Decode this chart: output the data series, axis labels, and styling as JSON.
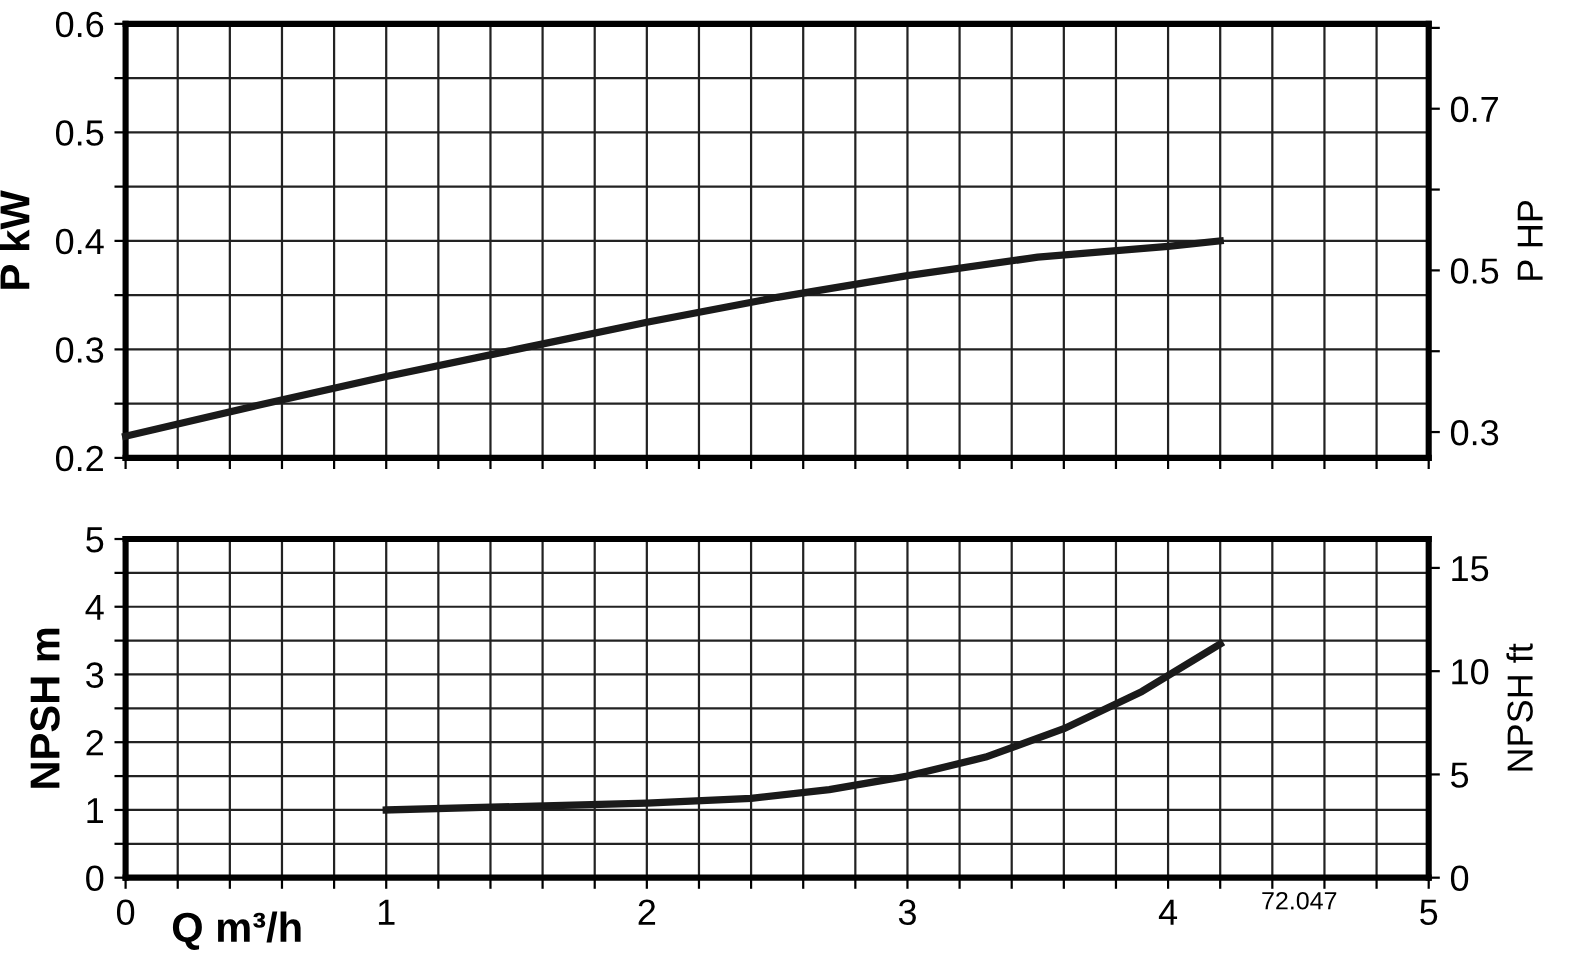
{
  "chart_data": [
    {
      "type": "line",
      "ylabel": "P kW",
      "y2label": "P HP",
      "grid": true,
      "tick_labels": "y",
      "marker": "none",
      "line_style": "solid",
      "xlim": [
        0,
        5
      ],
      "xticks": [
        0,
        {
          "value": 0.2,
          "label": null
        },
        {
          "value": 0.4,
          "label": null
        },
        {
          "value": 0.6,
          "label": null
        },
        {
          "value": 0.8,
          "label": null
        },
        1,
        {
          "value": 1.2,
          "label": null
        },
        {
          "value": 1.4,
          "label": null
        },
        {
          "value": 1.6,
          "label": null
        },
        {
          "value": 1.8,
          "label": null
        },
        2,
        {
          "value": 2.2,
          "label": null
        },
        {
          "value": 2.4,
          "label": null
        },
        {
          "value": 2.6,
          "label": null
        },
        {
          "value": 2.8,
          "label": null
        },
        3,
        {
          "value": 3.2,
          "label": null
        },
        {
          "value": 3.4,
          "label": null
        },
        {
          "value": 3.6,
          "label": null
        },
        {
          "value": 3.8,
          "label": null
        },
        4,
        {
          "value": 4.2,
          "label": null
        },
        {
          "value": 4.4,
          "label": null
        },
        {
          "value": 4.6,
          "label": null
        },
        {
          "value": 4.8,
          "label": null
        },
        5
      ],
      "ylim": [
        0.2,
        0.6
      ],
      "yticks": [
        0.2,
        {
          "value": 0.25,
          "label": null
        },
        0.3,
        {
          "value": 0.35,
          "label": null
        },
        0.4,
        {
          "value": 0.45,
          "label": null
        },
        0.5,
        {
          "value": 0.55,
          "label": null
        },
        0.6
      ],
      "y2lim": [
        0.268,
        0.805
      ],
      "y2ticks": [
        0.3,
        {
          "value": 0.4,
          "label": null
        },
        0.5,
        {
          "value": 0.6,
          "label": null
        },
        0.7,
        {
          "value": 0.8,
          "label": null
        }
      ],
      "series": [
        {
          "color": "#1a1a1a",
          "x": [
            0,
            0.5,
            1,
            1.5,
            2,
            2.5,
            3,
            3.5,
            4,
            4.2
          ],
          "values": [
            0.22,
            0.248,
            0.275,
            0.3,
            0.325,
            0.348,
            0.368,
            0.385,
            0.395,
            0.4
          ]
        }
      ]
    },
    {
      "type": "line",
      "ylabel": "NPSH m",
      "y2label": "NPSH ft",
      "xlabel": "Q m³/h",
      "grid": true,
      "marker": "none",
      "line_style": "solid",
      "annotations": [
        "72.047"
      ],
      "xlim": [
        0,
        5
      ],
      "xticks": [
        0,
        {
          "value": 0.2,
          "label": null
        },
        {
          "value": 0.4,
          "label": null
        },
        {
          "value": 0.6,
          "label": null
        },
        {
          "value": 0.8,
          "label": null
        },
        1,
        {
          "value": 1.2,
          "label": null
        },
        {
          "value": 1.4,
          "label": null
        },
        {
          "value": 1.6,
          "label": null
        },
        {
          "value": 1.8,
          "label": null
        },
        2,
        {
          "value": 2.2,
          "label": null
        },
        {
          "value": 2.4,
          "label": null
        },
        {
          "value": 2.6,
          "label": null
        },
        {
          "value": 2.8,
          "label": null
        },
        3,
        {
          "value": 3.2,
          "label": null
        },
        {
          "value": 3.4,
          "label": null
        },
        {
          "value": 3.6,
          "label": null
        },
        {
          "value": 3.8,
          "label": null
        },
        4,
        {
          "value": 4.2,
          "label": null
        },
        {
          "value": 4.4,
          "label": null
        },
        {
          "value": 4.6,
          "label": null
        },
        {
          "value": 4.8,
          "label": null
        },
        5
      ],
      "ylim": [
        0,
        5
      ],
      "yticks": [
        0,
        {
          "value": 0.5,
          "label": null
        },
        1,
        {
          "value": 1.5,
          "label": null
        },
        2,
        {
          "value": 2.5,
          "label": null
        },
        3,
        {
          "value": 3.5,
          "label": null
        },
        4,
        {
          "value": 4.5,
          "label": null
        },
        5
      ],
      "y2lim": [
        0,
        16.4
      ],
      "y2ticks": [
        0,
        5,
        10,
        15
      ],
      "series": [
        {
          "color": "#1a1a1a",
          "x": [
            1,
            1.5,
            2,
            2.4,
            2.7,
            3,
            3.3,
            3.6,
            3.9,
            4.2
          ],
          "values": [
            1.0,
            1.05,
            1.1,
            1.17,
            1.3,
            1.5,
            1.78,
            2.2,
            2.75,
            3.45
          ]
        }
      ]
    }
  ]
}
